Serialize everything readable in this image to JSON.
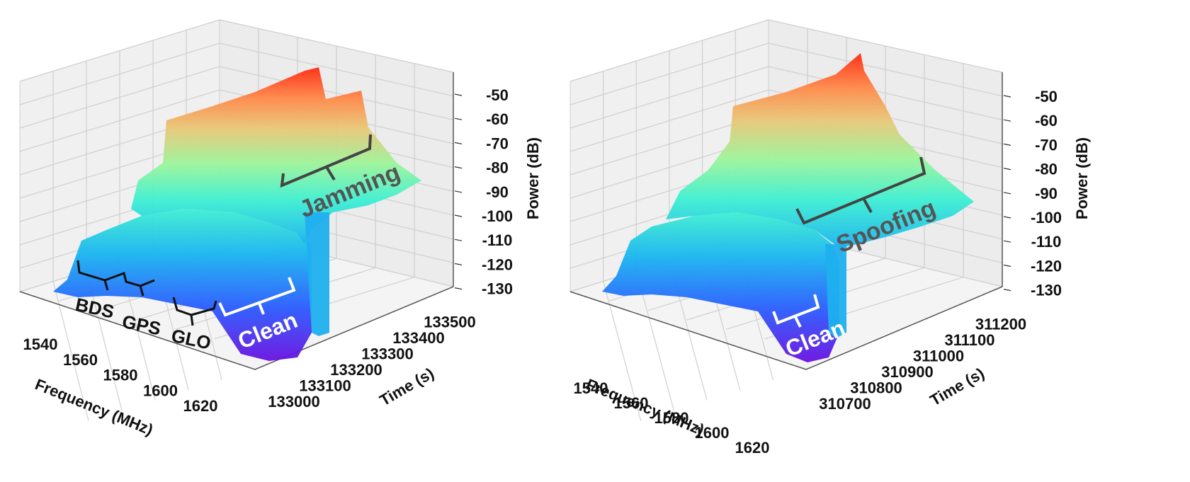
{
  "chart_data": [
    {
      "type": "surface3d",
      "zlabel": "Power (dB)",
      "xlabel": "Frequency (MHz)",
      "ylabel": "Time (s)",
      "x_ticks": [
        "1540",
        "1560",
        "1580",
        "1600",
        "1620"
      ],
      "y_ticks": [
        "133000",
        "133100",
        "133200",
        "133300",
        "133400",
        "133500"
      ],
      "z_ticks": [
        "-50",
        "-60",
        "-70",
        "-80",
        "-90",
        "-100",
        "-110",
        "-120",
        "-130"
      ],
      "zlim": [
        -130,
        -45
      ],
      "annotations": {
        "clean": "Clean",
        "attack": "Jamming",
        "bds": "BDS",
        "gps": "GPS",
        "glo": "GLO"
      },
      "bands": [
        {
          "name": "BDS",
          "center_mhz": 1561,
          "width_mhz": 10
        },
        {
          "name": "GPS",
          "center_mhz": 1575,
          "width_mhz": 8
        },
        {
          "name": "GLO",
          "center_mhz": 1602,
          "width_mhz": 12
        }
      ],
      "clean_level_db": -105,
      "attack_level_db": -55,
      "colorscale": [
        "#5a00c8",
        "#2a5bff",
        "#19b4f0",
        "#3ef0d2",
        "#9bf59b",
        "#e8d070",
        "#ff9a50",
        "#ff3010"
      ]
    },
    {
      "type": "surface3d",
      "zlabel": "Power (dB)",
      "xlabel": "Frequency (MHz)",
      "ylabel": "Time (s)",
      "x_ticks": [
        "1540",
        "1560",
        "1580",
        "1600",
        "1620"
      ],
      "y_ticks": [
        "310700",
        "310800",
        "310900",
        "311000",
        "311100",
        "311200"
      ],
      "z_ticks": [
        "-50",
        "-60",
        "-70",
        "-80",
        "-90",
        "-100",
        "-110",
        "-120",
        "-130"
      ],
      "zlim": [
        -130,
        -45
      ],
      "annotations": {
        "clean": "Clean",
        "attack": "Spoofing"
      },
      "clean_level_db": -105,
      "attack_level_db": -60,
      "colorscale": [
        "#5a00c8",
        "#2a5bff",
        "#19b4f0",
        "#3ef0d2",
        "#9bf59b",
        "#e8d070",
        "#ff9a50",
        "#ff3010"
      ]
    }
  ]
}
